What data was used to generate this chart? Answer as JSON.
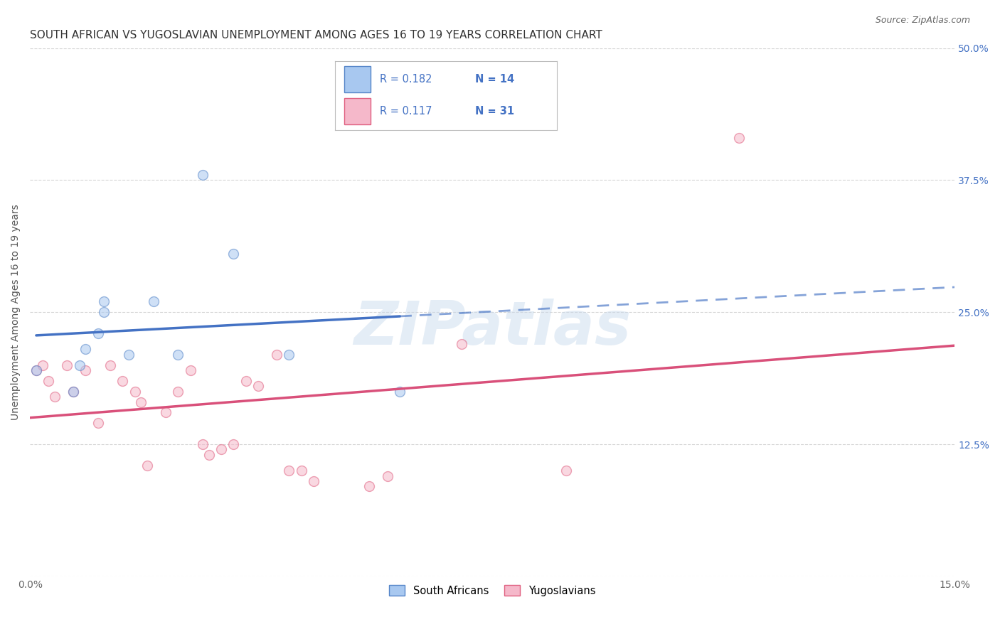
{
  "title": "SOUTH AFRICAN VS YUGOSLAVIAN UNEMPLOYMENT AMONG AGES 16 TO 19 YEARS CORRELATION CHART",
  "source": "Source: ZipAtlas.com",
  "ylabel": "Unemployment Among Ages 16 to 19 years",
  "xlim": [
    0.0,
    0.15
  ],
  "ylim": [
    0.0,
    0.5
  ],
  "xticks": [
    0.0,
    0.025,
    0.05,
    0.075,
    0.1,
    0.125,
    0.15
  ],
  "xticklabels": [
    "0.0%",
    "",
    "",
    "",
    "",
    "",
    "15.0%"
  ],
  "yticks": [
    0.0,
    0.125,
    0.25,
    0.375,
    0.5
  ],
  "yticklabels_right": [
    "",
    "12.5%",
    "25.0%",
    "37.5%",
    "50.0%"
  ],
  "south_african_x": [
    0.001,
    0.007,
    0.008,
    0.009,
    0.011,
    0.012,
    0.012,
    0.016,
    0.02,
    0.024,
    0.028,
    0.033,
    0.042,
    0.06
  ],
  "south_african_y": [
    0.195,
    0.175,
    0.2,
    0.215,
    0.23,
    0.25,
    0.26,
    0.21,
    0.26,
    0.21,
    0.38,
    0.305,
    0.21,
    0.175
  ],
  "yugoslavian_x": [
    0.001,
    0.002,
    0.003,
    0.004,
    0.006,
    0.007,
    0.009,
    0.011,
    0.013,
    0.015,
    0.017,
    0.018,
    0.019,
    0.022,
    0.024,
    0.026,
    0.028,
    0.029,
    0.031,
    0.033,
    0.035,
    0.037,
    0.04,
    0.042,
    0.044,
    0.046,
    0.055,
    0.058,
    0.07,
    0.087,
    0.115
  ],
  "yugoslavian_y": [
    0.195,
    0.2,
    0.185,
    0.17,
    0.2,
    0.175,
    0.195,
    0.145,
    0.2,
    0.185,
    0.175,
    0.165,
    0.105,
    0.155,
    0.175,
    0.195,
    0.125,
    0.115,
    0.12,
    0.125,
    0.185,
    0.18,
    0.21,
    0.1,
    0.1,
    0.09,
    0.085,
    0.095,
    0.22,
    0.1,
    0.415
  ],
  "south_african_color": "#a8c8f0",
  "yugoslavian_color": "#f5b8ca",
  "south_african_edge_color": "#5585c8",
  "yugoslavian_edge_color": "#e06080",
  "south_african_line_color": "#4472c4",
  "yugoslavian_line_color": "#d9507a",
  "R_sa": 0.182,
  "N_sa": 14,
  "R_yu": 0.117,
  "N_yu": 31,
  "legend_label_sa": "South Africans",
  "legend_label_yu": "Yugoslavians",
  "watermark": "ZIPatlas",
  "background_color": "#ffffff",
  "grid_color": "#cccccc",
  "title_fontsize": 11,
  "label_fontsize": 10,
  "tick_fontsize": 10,
  "marker_size": 100,
  "marker_alpha": 0.55,
  "marker_linewidth": 1.0
}
